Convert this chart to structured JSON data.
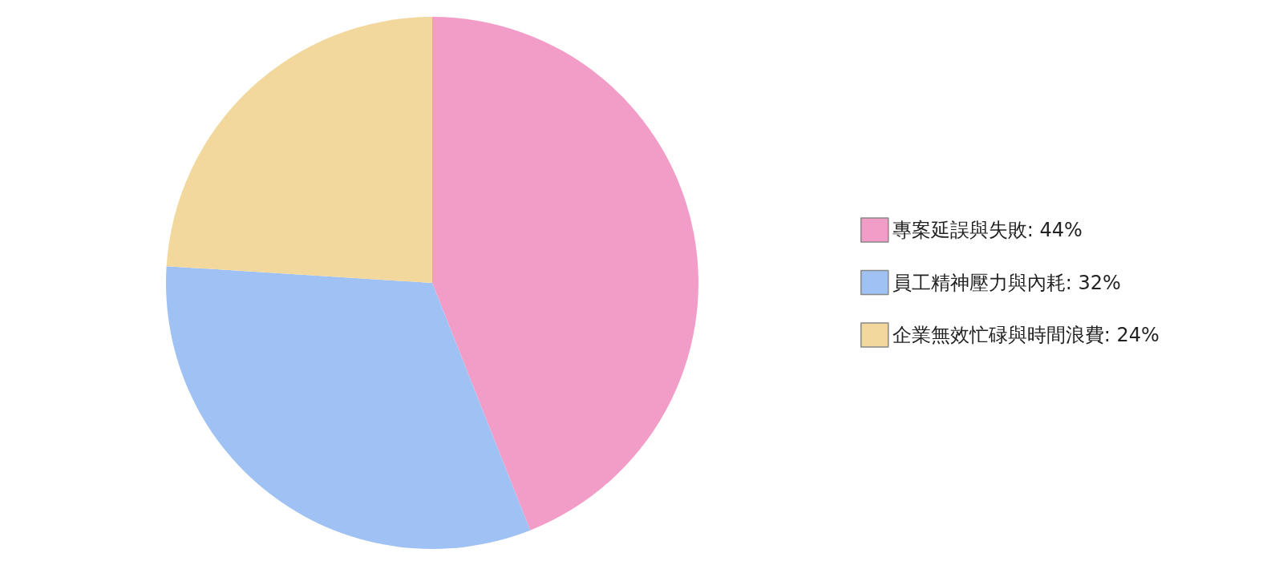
{
  "chart_data": {
    "type": "pie",
    "categories": [
      "專案延誤與失敗",
      "員工精神壓力與內耗",
      "企業無效忙碌與時間浪費"
    ],
    "values": [
      44,
      32,
      24
    ],
    "value_labels": [
      "44%",
      "32%",
      "24%"
    ],
    "colors": [
      "#f29dc7",
      "#9fc1f4",
      "#f2d89d"
    ],
    "legend": "right"
  }
}
